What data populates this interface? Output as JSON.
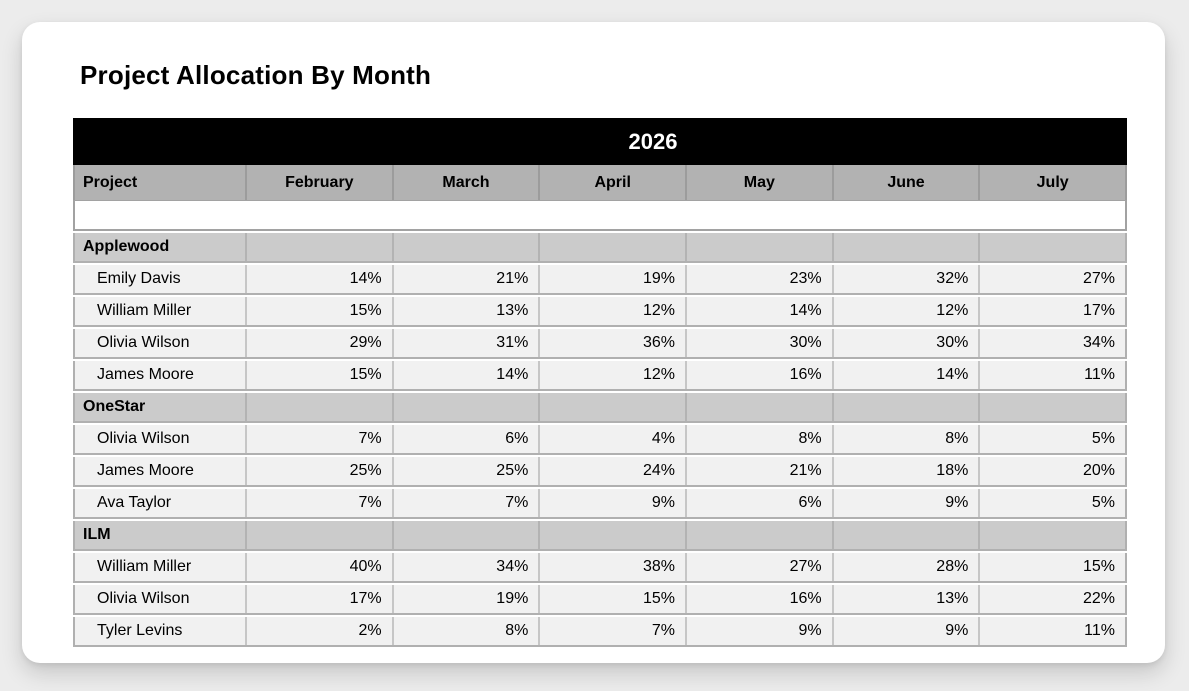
{
  "page": {
    "title": "Project Allocation By Month"
  },
  "colors": {
    "page_background": "#ececec",
    "card_background": "#ffffff",
    "year_band": "#000000",
    "year_text": "#ffffff",
    "header_row": "#b2b2b2",
    "group_row": "#cbcbcb",
    "data_row": "#f1f1f1",
    "grid_line": "#b0b0b0",
    "text": "#000000"
  },
  "table": {
    "year": "2026",
    "columns": [
      "Project",
      "February",
      "March",
      "April",
      "May",
      "June",
      "July"
    ],
    "groups": [
      {
        "name": "Applewood",
        "members": [
          {
            "name": "Emily Davis",
            "values": [
              "14%",
              "21%",
              "19%",
              "23%",
              "32%",
              "27%"
            ]
          },
          {
            "name": "William Miller",
            "values": [
              "15%",
              "13%",
              "12%",
              "14%",
              "12%",
              "17%"
            ]
          },
          {
            "name": "Olivia Wilson",
            "values": [
              "29%",
              "31%",
              "36%",
              "30%",
              "30%",
              "34%"
            ]
          },
          {
            "name": "James Moore",
            "values": [
              "15%",
              "14%",
              "12%",
              "16%",
              "14%",
              "11%"
            ]
          }
        ]
      },
      {
        "name": "OneStar",
        "members": [
          {
            "name": "Olivia Wilson",
            "values": [
              "7%",
              "6%",
              "4%",
              "8%",
              "8%",
              "5%"
            ]
          },
          {
            "name": "James Moore",
            "values": [
              "25%",
              "25%",
              "24%",
              "21%",
              "18%",
              "20%"
            ]
          },
          {
            "name": "Ava Taylor",
            "values": [
              "7%",
              "7%",
              "9%",
              "6%",
              "9%",
              "5%"
            ]
          }
        ]
      },
      {
        "name": "ILM",
        "members": [
          {
            "name": "William Miller",
            "values": [
              "40%",
              "34%",
              "38%",
              "27%",
              "28%",
              "15%"
            ]
          },
          {
            "name": "Olivia Wilson",
            "values": [
              "17%",
              "19%",
              "15%",
              "16%",
              "13%",
              "22%"
            ]
          },
          {
            "name": "Tyler Levins",
            "values": [
              "2%",
              "8%",
              "7%",
              "9%",
              "9%",
              "11%"
            ]
          }
        ]
      }
    ]
  },
  "chart_data": {
    "type": "table",
    "title": "Project Allocation By Month",
    "year": 2026,
    "unit": "%",
    "columns": [
      "Project",
      "February",
      "March",
      "April",
      "May",
      "June",
      "July"
    ],
    "rows": [
      {
        "project": "Applewood",
        "person": "Emily Davis",
        "values": [
          14,
          21,
          19,
          23,
          32,
          27
        ]
      },
      {
        "project": "Applewood",
        "person": "William Miller",
        "values": [
          15,
          13,
          12,
          14,
          12,
          17
        ]
      },
      {
        "project": "Applewood",
        "person": "Olivia Wilson",
        "values": [
          29,
          31,
          36,
          30,
          30,
          34
        ]
      },
      {
        "project": "Applewood",
        "person": "James Moore",
        "values": [
          15,
          14,
          12,
          16,
          14,
          11
        ]
      },
      {
        "project": "OneStar",
        "person": "Olivia Wilson",
        "values": [
          7,
          6,
          4,
          8,
          8,
          5
        ]
      },
      {
        "project": "OneStar",
        "person": "James Moore",
        "values": [
          25,
          25,
          24,
          21,
          18,
          20
        ]
      },
      {
        "project": "OneStar",
        "person": "Ava Taylor",
        "values": [
          7,
          7,
          9,
          6,
          9,
          5
        ]
      },
      {
        "project": "ILM",
        "person": "William Miller",
        "values": [
          40,
          34,
          38,
          27,
          28,
          15
        ]
      },
      {
        "project": "ILM",
        "person": "Olivia Wilson",
        "values": [
          17,
          19,
          15,
          16,
          13,
          22
        ]
      },
      {
        "project": "ILM",
        "person": "Tyler Levins",
        "values": [
          2,
          8,
          7,
          9,
          9,
          11
        ]
      }
    ]
  }
}
